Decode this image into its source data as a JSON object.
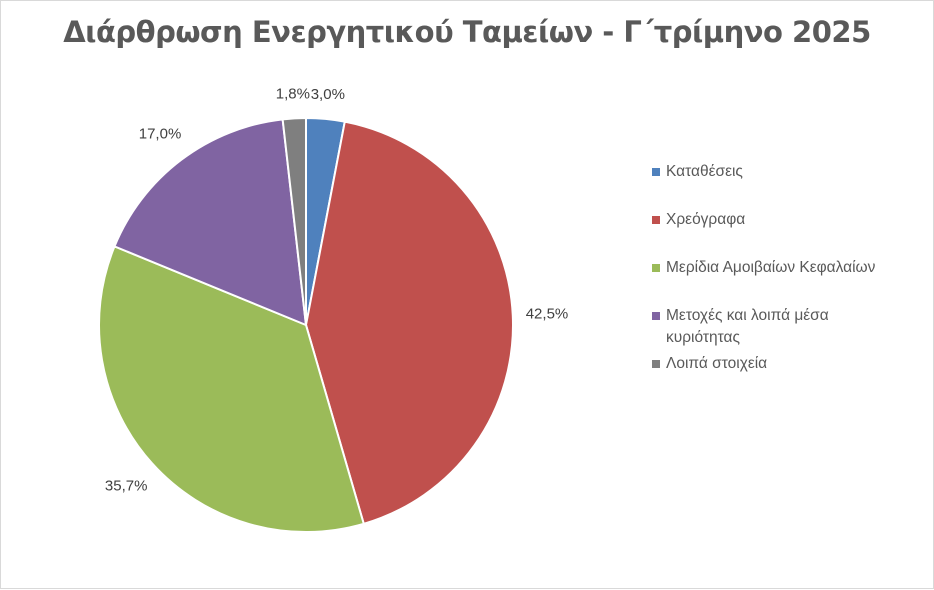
{
  "chart_data": {
    "type": "pie",
    "title": "Διάρθρωση Ενεργητικού Ταμείων - Γ΄τρίμηνο 2025",
    "categories": [
      "Καταθέσεις",
      "Χρεόγραφα",
      "Μερίδια Αμοιβαίων Κεφαλαίων",
      "Μετοχές και λοιπά μέσα κυριότητας",
      "Λοιπά στοιχεία"
    ],
    "values": [
      3.0,
      42.5,
      35.7,
      17.0,
      1.8
    ],
    "data_labels": [
      "3,0%",
      "42,5%",
      "35,7%",
      "17,0%",
      "1,8%"
    ],
    "colors": [
      "#4f81bd",
      "#c0504d",
      "#9bbb59",
      "#8064a2",
      "#7f7f7f"
    ],
    "start_angle": "12 o'clock, clockwise",
    "legend_position": "right"
  }
}
